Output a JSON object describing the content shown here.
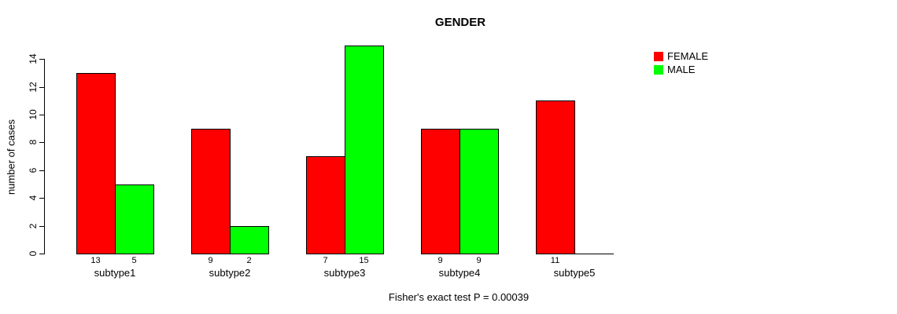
{
  "chart_data": {
    "type": "bar",
    "title": "GENDER",
    "xlabel": "",
    "ylabel": "number of cases",
    "categories": [
      "subtype1",
      "subtype2",
      "subtype3",
      "subtype4",
      "subtype5"
    ],
    "series": [
      {
        "name": "FEMALE",
        "color": "#ff0000",
        "values": [
          13,
          9,
          7,
          9,
          11
        ]
      },
      {
        "name": "MALE",
        "color": "#00ff00",
        "values": [
          5,
          2,
          15,
          9,
          0
        ]
      }
    ],
    "value_labels": [
      [
        "13",
        "5"
      ],
      [
        "9",
        "2"
      ],
      [
        "7",
        "15"
      ],
      [
        "9",
        "9"
      ],
      [
        "11",
        ""
      ]
    ],
    "ylim": [
      0,
      14
    ],
    "yticks": [
      0,
      2,
      4,
      6,
      8,
      10,
      12,
      14
    ],
    "grid": false,
    "legend_position": "top-right",
    "bar_border_color": "#000000",
    "annotation": "Fisher's exact test P = 0.00039"
  }
}
